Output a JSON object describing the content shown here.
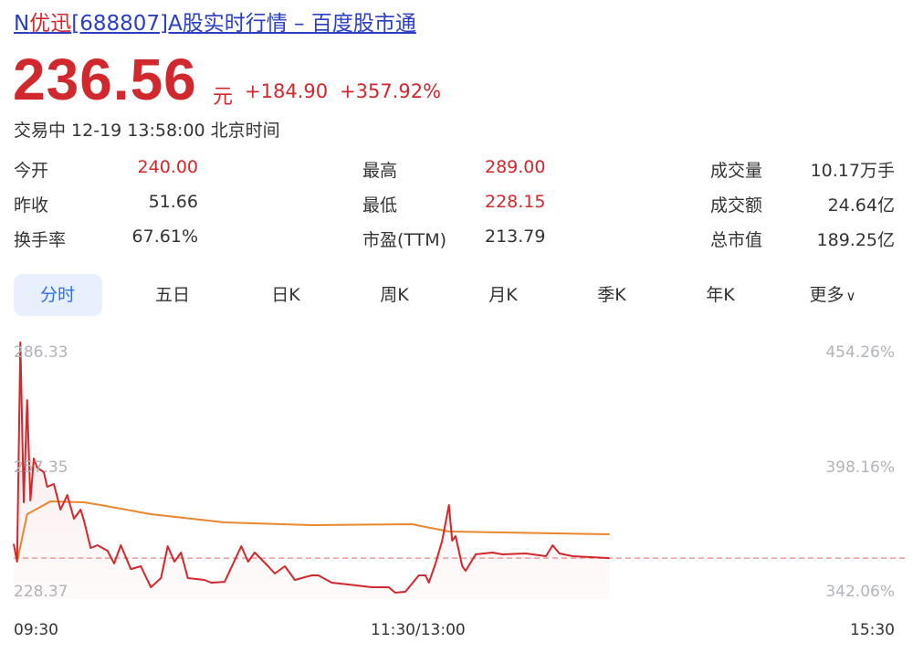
{
  "header": {
    "title_prefix": "N",
    "title_highlight": "优迅",
    "title_suffix": "[688807]A股实时行情 – 百度股市通"
  },
  "quote": {
    "price": "236.56",
    "unit": "元",
    "change": "+184.90",
    "change_pct": "+357.92%",
    "status": "交易中 12-19 13:58:00 北京时间"
  },
  "stats": [
    {
      "label": "今开",
      "value": "240.00",
      "color": "red"
    },
    {
      "label": "昨收",
      "value": "51.66",
      "color": "normal"
    },
    {
      "label": "换手率",
      "value": "67.61%",
      "color": "normal"
    },
    {
      "label": "最高",
      "value": "289.00",
      "color": "red"
    },
    {
      "label": "最低",
      "value": "228.15",
      "color": "red"
    },
    {
      "label": "市盈(TTM)",
      "value": "213.79",
      "color": "normal"
    },
    {
      "label": "成交量",
      "value": "10.17万手",
      "color": "normal"
    },
    {
      "label": "成交额",
      "value": "24.64亿",
      "color": "normal"
    },
    {
      "label": "总市值",
      "value": "189.25亿",
      "color": "normal"
    }
  ],
  "tabs": [
    {
      "label": "分时",
      "active": true
    },
    {
      "label": "五日"
    },
    {
      "label": "日K"
    },
    {
      "label": "周K"
    },
    {
      "label": "月K"
    },
    {
      "label": "季K"
    },
    {
      "label": "年K"
    },
    {
      "label": "更多"
    }
  ],
  "colors": {
    "up": "#d0282c",
    "avg": "#e8872e",
    "link": "#2a3fc4",
    "tab_active": "#2f6fe0"
  },
  "chart_data": {
    "type": "line",
    "y_left_ticks": [
      "286.33",
      "257.35",
      "228.37"
    ],
    "y_right_ticks": [
      "454.26%",
      "398.16%",
      "342.06%"
    ],
    "ylim": [
      228.37,
      286.33
    ],
    "x_ticks": [
      "09:30",
      "11:30/13:00",
      "15:30"
    ],
    "reference_line": 236.56,
    "series": [
      {
        "key": "price",
        "points": [
          [
            "09:30",
            240.0
          ],
          [
            "09:31",
            235.69
          ],
          [
            "09:32",
            289.0
          ],
          [
            "09:33",
            250.13
          ],
          [
            "09:34",
            275.0
          ],
          [
            "09:35",
            250.57
          ],
          [
            "09:36",
            260.79
          ],
          [
            "09:37",
            258.57
          ],
          [
            "09:39",
            257.46
          ],
          [
            "09:40",
            253.9
          ],
          [
            "09:42",
            254.57
          ],
          [
            "09:44",
            248.35
          ],
          [
            "09:46",
            251.91
          ],
          [
            "09:48",
            246.13
          ],
          [
            "09:50",
            248.35
          ],
          [
            "09:51",
            245.68
          ],
          [
            "09:53",
            239.02
          ],
          [
            "09:55",
            239.69
          ],
          [
            "09:58",
            238.36
          ],
          [
            "10:00",
            235.25
          ],
          [
            "10:02",
            239.69
          ],
          [
            "10:05",
            233.91
          ],
          [
            "10:08",
            234.58
          ],
          [
            "10:09",
            232.81
          ],
          [
            "10:11",
            229.48
          ],
          [
            "10:14",
            231.69
          ],
          [
            "10:16",
            239.47
          ],
          [
            "10:18",
            235.69
          ],
          [
            "10:20",
            237.91
          ],
          [
            "10:22",
            231.69
          ],
          [
            "10:27",
            231.25
          ],
          [
            "10:29",
            230.58
          ],
          [
            "10:33",
            230.8
          ],
          [
            "10:38",
            239.47
          ],
          [
            "10:40",
            235.69
          ],
          [
            "10:42",
            237.91
          ],
          [
            "10:46",
            234.58
          ],
          [
            "10:48",
            232.81
          ],
          [
            "10:51",
            234.58
          ],
          [
            "10:54",
            231.25
          ],
          [
            "10:59",
            232.36
          ],
          [
            "11:01",
            232.36
          ],
          [
            "11:05",
            230.58
          ],
          [
            "11:10",
            230.14
          ],
          [
            "11:17",
            229.48
          ],
          [
            "11:22",
            229.48
          ],
          [
            "11:24",
            228.15
          ],
          [
            "11:27",
            228.4
          ],
          [
            "13:01",
            232.36
          ],
          [
            "13:03",
            232.36
          ],
          [
            "13:04",
            230.58
          ],
          [
            "13:06",
            235.25
          ],
          [
            "13:08",
            240.8
          ],
          [
            "13:10",
            249.46
          ],
          [
            "13:11",
            240.8
          ],
          [
            "13:12",
            241.91
          ],
          [
            "13:14",
            234.58
          ],
          [
            "13:15",
            233.47
          ],
          [
            "13:18",
            237.47
          ],
          [
            "13:23",
            237.91
          ],
          [
            "13:26",
            237.47
          ],
          [
            "13:33",
            237.69
          ],
          [
            "13:39",
            237.02
          ],
          [
            "13:41",
            239.69
          ],
          [
            "13:43",
            237.69
          ],
          [
            "13:47",
            237.02
          ],
          [
            "13:58",
            236.56
          ]
        ]
      },
      {
        "key": "average",
        "points": [
          [
            "09:31",
            235.69
          ],
          [
            "09:34",
            247.24
          ],
          [
            "09:41",
            250.35
          ],
          [
            "09:51",
            250.13
          ],
          [
            "09:56",
            249.46
          ],
          [
            "10:11",
            247.24
          ],
          [
            "10:33",
            245.24
          ],
          [
            "10:59",
            244.58
          ],
          [
            "11:29",
            244.8
          ],
          [
            "13:10",
            243.02
          ],
          [
            "13:58",
            242.36
          ]
        ]
      }
    ]
  }
}
